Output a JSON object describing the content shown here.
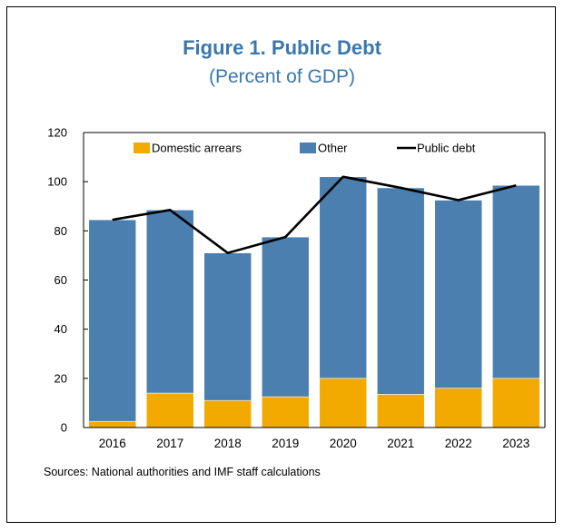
{
  "figure": {
    "title": "Figure 1. Public Debt",
    "subtitle": "(Percent of GDP)",
    "source": "Sources: National authorities and IMF staff calculations"
  },
  "colors": {
    "domestic_arrears": "#f2a900",
    "other": "#4a7fb0",
    "public_debt": "#000000",
    "title": "#3a77ad"
  },
  "chart_data": {
    "type": "bar",
    "stacked": true,
    "categories": [
      "2016",
      "2017",
      "2018",
      "2019",
      "2020",
      "2021",
      "2022",
      "2023"
    ],
    "series": [
      {
        "name": "Domestic arrears",
        "kind": "bar",
        "values": [
          2.5,
          14,
          11,
          12.5,
          20,
          13.5,
          16,
          20
        ]
      },
      {
        "name": "Other",
        "kind": "bar",
        "values": [
          82,
          74.5,
          60,
          65,
          82,
          84,
          76.5,
          78.5
        ]
      },
      {
        "name": "Public debt",
        "kind": "line",
        "values": [
          84.5,
          88.5,
          71,
          77.5,
          102,
          97.5,
          92.5,
          98.5
        ]
      }
    ],
    "ylim": [
      0,
      120
    ],
    "yticks": [
      0,
      20,
      40,
      60,
      80,
      100,
      120
    ],
    "legend_position": "top",
    "grid": false
  }
}
